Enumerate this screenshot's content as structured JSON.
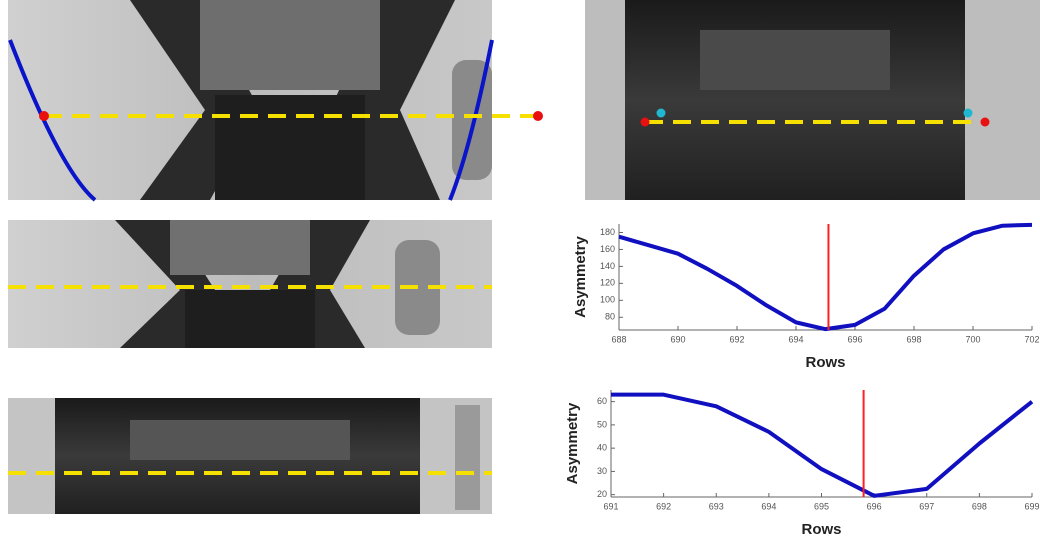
{
  "chart_data": [
    {
      "type": "line",
      "x_label": "Rows",
      "y_label": "Asymmetry",
      "x": [
        688,
        689,
        690,
        691,
        692,
        693,
        694,
        695,
        696,
        697,
        698,
        699,
        700,
        701,
        702
      ],
      "values": [
        175,
        165,
        155,
        137,
        117,
        94,
        74,
        66,
        71,
        90,
        129,
        160,
        179,
        188,
        189
      ],
      "color": "#1010c0",
      "xlim": [
        688,
        702
      ],
      "ylim": [
        65,
        190
      ],
      "xticks": [
        688,
        690,
        692,
        694,
        696,
        698,
        700,
        702
      ],
      "yticks": [
        80,
        100,
        120,
        140,
        160,
        180
      ],
      "marker_x": 695.1,
      "marker_color": "#ff2020"
    },
    {
      "type": "line",
      "x_label": "Rows",
      "y_label": "Asymmetry",
      "x": [
        691,
        692,
        693,
        694,
        695,
        696,
        697,
        698,
        699
      ],
      "values": [
        63,
        63,
        58,
        47,
        31,
        19.5,
        22.5,
        42,
        60
      ],
      "color": "#1010c0",
      "xlim": [
        691,
        699
      ],
      "ylim": [
        19,
        65
      ],
      "xticks": [
        691,
        692,
        693,
        694,
        695,
        696,
        697,
        698,
        699
      ],
      "yticks": [
        20,
        30,
        40,
        50,
        60
      ],
      "marker_x": 695.8,
      "marker_color": "#ff2020"
    }
  ]
}
